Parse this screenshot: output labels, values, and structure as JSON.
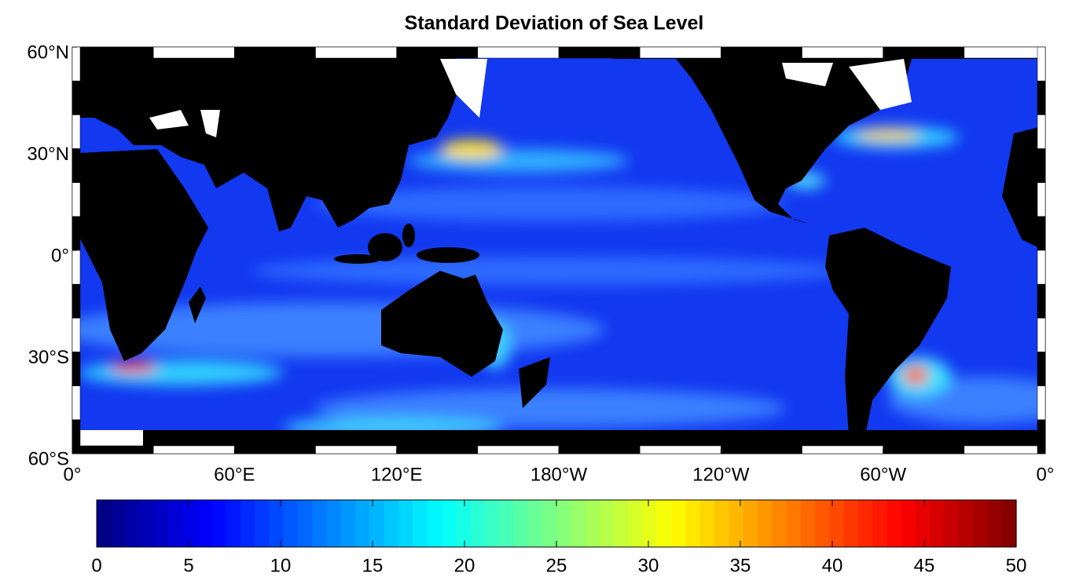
{
  "title": "Standard Deviation of Sea Level",
  "map": {
    "lonlim": [
      0,
      360
    ],
    "latlim": [
      -60,
      60
    ],
    "lon_ticks": [
      {
        "value": 0,
        "label": "0°"
      },
      {
        "value": 60,
        "label": "60°E"
      },
      {
        "value": 120,
        "label": "120°E"
      },
      {
        "value": 180,
        "label": "180°W"
      },
      {
        "value": 240,
        "label": "120°W"
      },
      {
        "value": 300,
        "label": "60°W"
      },
      {
        "value": 360,
        "label": "0°"
      }
    ],
    "lat_ticks": [
      {
        "value": 60,
        "label": "60°N"
      },
      {
        "value": 30,
        "label": "30°N"
      },
      {
        "value": 0,
        "label": "0°"
      },
      {
        "value": -30,
        "label": "30°S"
      },
      {
        "value": -60,
        "label": "60°S"
      }
    ]
  },
  "colorbar": {
    "colormap": "jet",
    "lim": [
      0,
      50
    ],
    "ticks": [
      0,
      5,
      10,
      15,
      20,
      25,
      30,
      35,
      40,
      45,
      50
    ]
  }
}
